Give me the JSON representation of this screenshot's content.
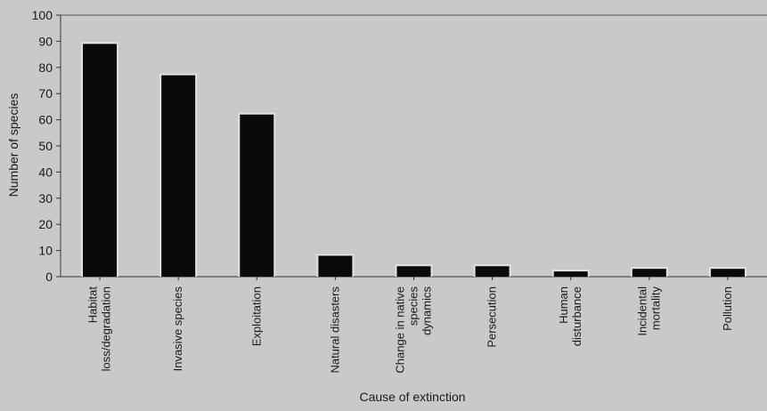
{
  "chart_data": {
    "type": "bar",
    "title": "",
    "xlabel": "Cause of extinction",
    "ylabel": "Number of species",
    "ylim": [
      0,
      100
    ],
    "yticks": [
      0,
      10,
      20,
      30,
      40,
      50,
      60,
      70,
      80,
      90,
      100
    ],
    "grid": false,
    "categories": [
      "Habitat loss/degradation",
      "Invasive species",
      "Exploitation",
      "Natural disasters",
      "Change in native species dynamics",
      "Persecution",
      "Human disturbance",
      "Incidental mortality",
      "Pollution"
    ],
    "category_label_lines": [
      [
        "Habitat",
        "loss/degradation"
      ],
      [
        "Invasive species"
      ],
      [
        "Exploitation"
      ],
      [
        "Natural disasters"
      ],
      [
        "Change in native",
        "species",
        "dynamics"
      ],
      [
        "Persecution"
      ],
      [
        "Human",
        "disturbance"
      ],
      [
        "Incidental",
        "mortality"
      ],
      [
        "Pollution"
      ]
    ],
    "values": [
      89,
      77,
      62,
      8,
      4,
      4,
      2,
      3,
      3
    ],
    "bar_color": "#0a0a0a"
  }
}
